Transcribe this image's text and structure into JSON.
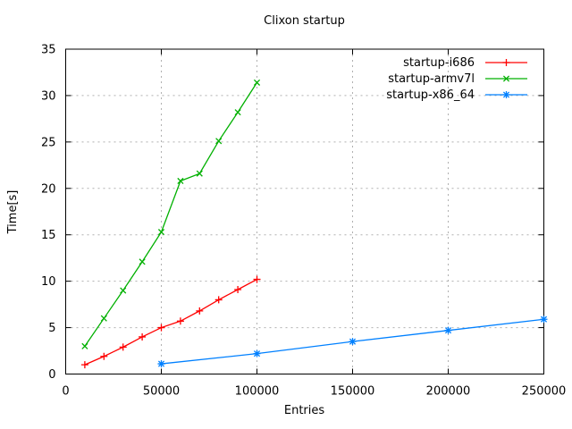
{
  "chart_data": {
    "type": "line",
    "title": "Clixon startup",
    "xlabel": "Entries",
    "ylabel": "Time[s]",
    "xlim": [
      0,
      250000
    ],
    "ylim": [
      0,
      35
    ],
    "x_ticks": [
      0,
      50000,
      100000,
      150000,
      200000,
      250000
    ],
    "y_ticks": [
      0,
      5,
      10,
      15,
      20,
      25,
      30,
      35
    ],
    "grid": true,
    "grid_style": "dashed-gray",
    "legend_position": "top-right-inside",
    "border_color": "#000000",
    "grid_color": "#b0b0b0",
    "series": [
      {
        "name": "startup-i686",
        "color": "#ff0000",
        "marker": "plus",
        "x": [
          10000,
          20000,
          30000,
          40000,
          50000,
          60000,
          70000,
          80000,
          90000,
          100000
        ],
        "y": [
          1.0,
          1.9,
          2.9,
          4.0,
          5.0,
          5.7,
          6.8,
          8.0,
          9.1,
          10.2
        ]
      },
      {
        "name": "startup-armv7l",
        "color": "#00b000",
        "marker": "cross",
        "x": [
          10000,
          20000,
          30000,
          40000,
          50000,
          60000,
          70000,
          80000,
          90000,
          100000
        ],
        "y": [
          3.0,
          6.0,
          9.0,
          12.1,
          15.3,
          20.8,
          21.6,
          25.1,
          28.2,
          31.4
        ]
      },
      {
        "name": "startup-x86_64",
        "color": "#0080ff",
        "marker": "asterisk",
        "x": [
          50000,
          100000,
          150000,
          200000,
          250000
        ],
        "y": [
          1.1,
          2.2,
          3.5,
          4.7,
          5.9
        ]
      }
    ]
  }
}
